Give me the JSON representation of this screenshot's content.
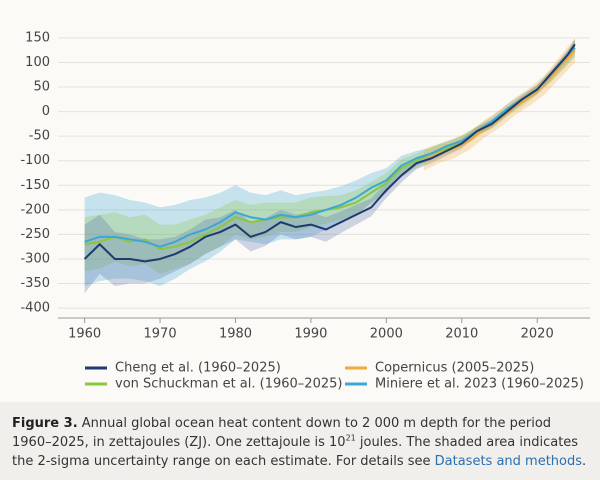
{
  "chart_data": {
    "type": "line",
    "xlim": [
      1957,
      2027
    ],
    "xticks": [
      1960,
      1970,
      1980,
      1990,
      2000,
      2010,
      2020
    ],
    "ylim": [
      -410,
      160
    ],
    "yticks": [
      150,
      100,
      50,
      0,
      -50,
      -100,
      -150,
      -200,
      -250,
      -300,
      -350,
      -400
    ],
    "grid": true,
    "series": [
      {
        "name": "Cheng et al. (1960–2025)",
        "color": "#1f3b6e",
        "band_color": "#5b6fae",
        "x": [
          1960,
          1962,
          1964,
          1966,
          1968,
          1970,
          1972,
          1974,
          1976,
          1978,
          1980,
          1982,
          1984,
          1986,
          1988,
          1990,
          1992,
          1994,
          1996,
          1998,
          2000,
          2002,
          2004,
          2006,
          2008,
          2010,
          2012,
          2014,
          2016,
          2018,
          2020,
          2022,
          2024,
          2025
        ],
        "values": [
          -300,
          -270,
          -300,
          -300,
          -305,
          -300,
          -290,
          -275,
          -255,
          -245,
          -230,
          -255,
          -245,
          -225,
          -235,
          -230,
          -240,
          -225,
          -210,
          -195,
          -160,
          -130,
          -105,
          -95,
          -80,
          -65,
          -40,
          -25,
          0,
          25,
          45,
          80,
          115,
          137
        ],
        "error": [
          70,
          60,
          55,
          50,
          45,
          40,
          35,
          35,
          35,
          30,
          30,
          30,
          28,
          25,
          25,
          25,
          25,
          22,
          20,
          18,
          16,
          14,
          12,
          10,
          10,
          10,
          8,
          8,
          8,
          8,
          8,
          8,
          8,
          10
        ]
      },
      {
        "name": "Copernicus (2005–2025)",
        "color": "#f2a93b",
        "band_color": "#f2a93b",
        "x": [
          2005,
          2007,
          2009,
          2011,
          2013,
          2015,
          2017,
          2019,
          2021,
          2023,
          2025
        ],
        "values": [
          -100,
          -85,
          -75,
          -60,
          -35,
          -15,
          10,
          30,
          55,
          90,
          125
        ],
        "error": [
          20,
          20,
          20,
          18,
          18,
          18,
          18,
          18,
          20,
          22,
          25
        ]
      },
      {
        "name": "von Schuckman et al. (1960–2025)",
        "color": "#8cc63f",
        "band_color": "#8cc63f",
        "x": [
          1960,
          1962,
          1964,
          1966,
          1968,
          1970,
          1972,
          1974,
          1976,
          1978,
          1980,
          1982,
          1984,
          1986,
          1988,
          1990,
          1992,
          1994,
          1996,
          1998,
          2000,
          2002,
          2004,
          2006,
          2008,
          2010,
          2012,
          2014,
          2016,
          2018,
          2020,
          2022,
          2024,
          2025
        ],
        "values": [
          -270,
          -265,
          -255,
          -265,
          -260,
          -280,
          -275,
          -265,
          -250,
          -235,
          -215,
          -225,
          -220,
          -215,
          -215,
          -205,
          -200,
          -195,
          -185,
          -165,
          -145,
          -115,
          -100,
          -85,
          -75,
          -60,
          -40,
          -25,
          0,
          20,
          45,
          75,
          110,
          130
        ],
        "error": [
          55,
          55,
          50,
          50,
          50,
          50,
          45,
          45,
          40,
          40,
          35,
          35,
          35,
          30,
          30,
          30,
          28,
          25,
          25,
          22,
          20,
          18,
          15,
          15,
          12,
          12,
          10,
          10,
          10,
          10,
          10,
          10,
          12,
          15
        ]
      },
      {
        "name": "Miniere et al. 2023 (1960–2025)",
        "color": "#3ba7d4",
        "band_color": "#3ba7d4",
        "x": [
          1960,
          1962,
          1964,
          1966,
          1968,
          1970,
          1972,
          1974,
          1976,
          1978,
          1980,
          1982,
          1984,
          1986,
          1988,
          1990,
          1992,
          1994,
          1996,
          1998,
          2000,
          2002,
          2004,
          2006,
          2008,
          2010,
          2012,
          2014,
          2016,
          2018,
          2020,
          2022,
          2024,
          2025
        ],
        "values": [
          -265,
          -255,
          -255,
          -260,
          -265,
          -275,
          -265,
          -250,
          -240,
          -225,
          -205,
          -215,
          -220,
          -210,
          -215,
          -210,
          -200,
          -190,
          -175,
          -155,
          -140,
          -110,
          -95,
          -85,
          -70,
          -60,
          -40,
          -20,
          5,
          25,
          45,
          75,
          110,
          130
        ],
        "error": [
          90,
          90,
          85,
          80,
          80,
          80,
          75,
          70,
          65,
          60,
          55,
          50,
          50,
          50,
          45,
          45,
          40,
          38,
          35,
          30,
          25,
          20,
          15,
          12,
          10,
          10,
          10,
          10,
          10,
          10,
          10,
          12,
          15,
          18
        ]
      }
    ]
  },
  "caption": {
    "label": "Figure 3.",
    "text1": " Annual global ocean heat content down to 2 000 m depth for the period 1960–2025, in zettajoules (ZJ). One zettajoule is 10",
    "sup": "21",
    "text2": " joules. The shaded area indicates the 2-sigma uncertainty range on each estimate. For details see ",
    "link": "Datasets and methods",
    "text3": "."
  }
}
